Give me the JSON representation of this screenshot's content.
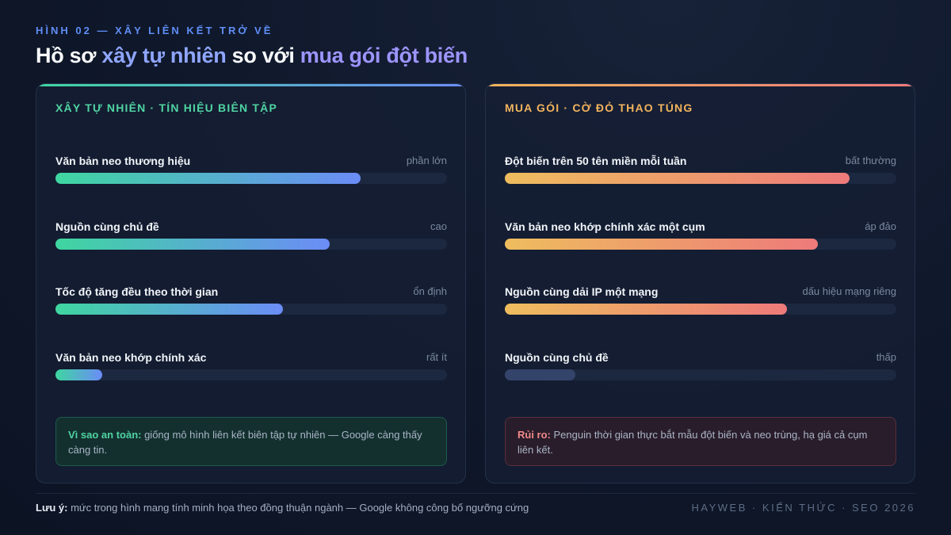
{
  "header": {
    "eyebrow": "HÌNH 02 — XÂY LIÊN KẾT TRỞ VỀ",
    "title_part1": "Hồ sơ ",
    "title_accent1": "xây tự nhiên",
    "title_part2": " so với ",
    "title_accent2": "mua gói đột biến"
  },
  "left_panel": {
    "heading": "XÂY TỰ NHIÊN · TÍN HIỆU BIÊN TẬP",
    "metrics": [
      {
        "label": "Văn bản neo thương hiệu",
        "value": "phần lớn",
        "fill_pct": 78
      },
      {
        "label": "Nguồn cùng chủ đề",
        "value": "cao",
        "fill_pct": 70
      },
      {
        "label": "Tốc độ tăng đều theo thời gian",
        "value": "ổn định",
        "fill_pct": 58
      },
      {
        "label": "Văn bản neo khớp chính xác",
        "value": "rất ít",
        "fill_pct": 12
      }
    ],
    "note_lead": "Vì sao an toàn:",
    "note_text": " giống mô hình liên kết biên tập tự nhiên — Google càng thấy càng tin."
  },
  "right_panel": {
    "heading": "MUA GÓI · CỜ ĐỎ THAO TÚNG",
    "metrics": [
      {
        "label": "Đột biến trên 50 tên miền mỗi tuần",
        "value": "bất thường",
        "fill_pct": 88
      },
      {
        "label": "Văn bản neo khớp chính xác một cụm",
        "value": "áp đảo",
        "fill_pct": 80
      },
      {
        "label": "Nguồn cùng dải IP một mạng",
        "value": "dấu hiệu mạng riêng",
        "fill_pct": 72
      },
      {
        "label": "Nguồn cùng chủ đề",
        "value": "thấp",
        "fill_pct": 18
      }
    ],
    "note_lead": "Rủi ro:",
    "note_text": " Penguin thời gian thực bắt mẫu đột biến và neo trùng, hạ giá cả cụm liên kết."
  },
  "footer": {
    "note_lead": "Lưu ý:",
    "note_text": " mức trong hình mang tính minh họa theo đồng thuận ngành — Google không công bố ngưỡng cứng",
    "brand": "HAYWEB · KIẾN THỨC · SEO 2026"
  }
}
